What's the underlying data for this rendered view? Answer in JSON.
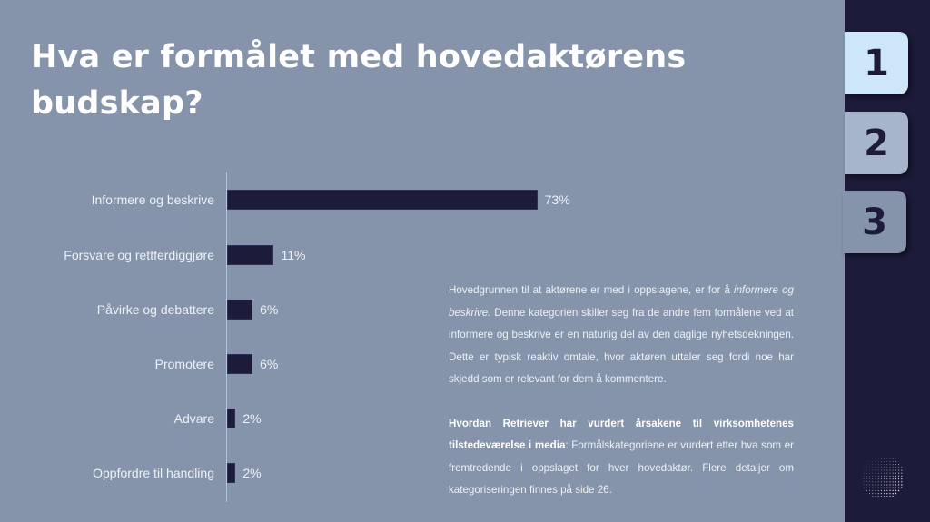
{
  "slide": {
    "title": "Hva er formålet med hovedaktørens budskap?",
    "colors": {
      "panel_background": "#8594ab",
      "sidebar_background": "#1c1b3a",
      "bar_color": "#1c1b3a",
      "tab_active": "#cde6f8",
      "tab_2": "#a6b5c9",
      "tab_3": "#8594ab"
    }
  },
  "chart_data": {
    "type": "bar",
    "orientation": "horizontal",
    "title": "Hva er formålet med hovedaktørens budskap?",
    "xlabel": "",
    "ylabel": "",
    "categories": [
      "Informere og beskrive",
      "Forsvare og rettferdiggjøre",
      "Påvirke og debattere",
      "Promotere",
      "Advare",
      "Oppfordre til handling"
    ],
    "values": [
      73,
      11,
      6,
      6,
      2,
      2
    ],
    "value_labels": [
      "73%",
      "11%",
      "6%",
      "6%",
      "2%",
      "2%"
    ],
    "unit": "%",
    "grid": false,
    "legend": null
  },
  "body": {
    "p1_part1": "Hovedgrunnen til at aktørene er med i oppslagene, er for å ",
    "p1_italic": "informere og beskrive.",
    "p1_part2": " Denne kategorien skiller seg fra de andre fem formålene ved at informere og beskrive er en naturlig del av den daglige nyhetsdekningen. Dette er typisk reaktiv omtale, hvor aktøren  uttaler seg fordi noe har skjedd som er relevant for dem å kommentere.",
    "p2_bold": "Hvordan Retriever har vurdert årsakene til virksomhetenes tilstedeværelse i media",
    "p2_rest": ": Formålskategoriene er vurdert etter hva som er fremtredende i oppslaget for hver hovedaktør. Flere detaljer om kategoriseringen finnes på side 26."
  },
  "tabs": [
    {
      "label": "1",
      "state": "active"
    },
    {
      "label": "2",
      "state": "inactive"
    },
    {
      "label": "3",
      "state": "current"
    }
  ],
  "logo": {
    "icon": "dotted-globe-icon"
  }
}
